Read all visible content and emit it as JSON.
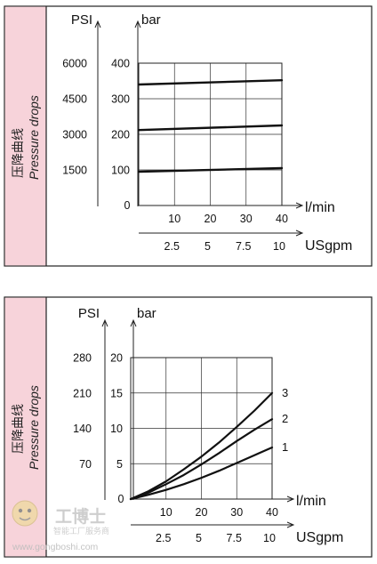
{
  "chart_data": [
    {
      "type": "line",
      "side_label_cn": "压降曲线",
      "side_label_en": "Pressure drops",
      "y_unit_psi": "PSI",
      "y_unit_bar": "bar",
      "psi_ticks": [
        "6000",
        "4500",
        "3000",
        "1500"
      ],
      "bar_ticks": [
        "400",
        "300",
        "200",
        "100"
      ],
      "zero_label": "0",
      "ylim": [
        0,
        400
      ],
      "x_unit_lmin": "l/min",
      "x_ticks_lmin": [
        "10",
        "20",
        "30",
        "40"
      ],
      "xlim": [
        0,
        40
      ],
      "x_unit_usgpm": "USgpm",
      "x_ticks_usgpm": [
        "2.5",
        "5",
        "7.5",
        "10"
      ],
      "series": [
        {
          "x": [
            0,
            40
          ],
          "values": [
            340,
            352
          ]
        },
        {
          "x": [
            0,
            40
          ],
          "values": [
            212,
            225
          ]
        },
        {
          "x": [
            0,
            40
          ],
          "values": [
            95,
            105
          ]
        }
      ]
    },
    {
      "type": "line",
      "side_label_cn": "压降曲线",
      "side_label_en": "Pressure drops",
      "y_unit_psi": "PSI",
      "y_unit_bar": "bar",
      "psi_ticks": [
        "280",
        "210",
        "140",
        "70"
      ],
      "bar_ticks": [
        "20",
        "15",
        "10",
        "5"
      ],
      "zero_label": "0",
      "ylim": [
        0,
        20
      ],
      "x_unit_lmin": "l/min",
      "x_ticks_lmin": [
        "10",
        "20",
        "30",
        "40"
      ],
      "xlim": [
        0,
        40
      ],
      "x_unit_usgpm": "USgpm",
      "x_ticks_usgpm": [
        "2.5",
        "5",
        "7.5",
        "10"
      ],
      "series": [
        {
          "name": "3",
          "x": [
            0,
            5,
            10,
            15,
            20,
            25,
            30,
            35,
            40
          ],
          "values": [
            0,
            1.1,
            2.5,
            4.2,
            6.0,
            8.0,
            10.2,
            12.5,
            15.0
          ]
        },
        {
          "name": "2",
          "x": [
            0,
            5,
            10,
            15,
            20,
            25,
            30,
            35,
            40
          ],
          "values": [
            0,
            0.9,
            2.1,
            3.4,
            4.9,
            6.5,
            8.2,
            9.8,
            11.3
          ]
        },
        {
          "name": "1",
          "x": [
            0,
            5,
            10,
            15,
            20,
            25,
            30,
            35,
            40
          ],
          "values": [
            0,
            0.6,
            1.3,
            2.1,
            3.0,
            4.0,
            5.1,
            6.2,
            7.3
          ]
        }
      ]
    }
  ],
  "watermark": {
    "cn": "工博士",
    "sub": "智能工厂服务商",
    "url": "www.gongboshi.com"
  }
}
